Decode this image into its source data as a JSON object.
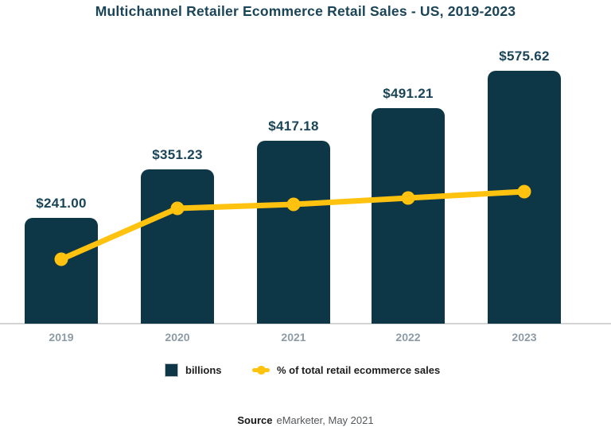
{
  "title": "Multichannel Retailer Ecommerce Retail Sales - US, 2019-2023",
  "chart_data": {
    "type": "combo",
    "title": "Multichannel Retailer Ecommerce Retail Sales - US, 2019-2023",
    "categories": [
      "2019",
      "2020",
      "2021",
      "2022",
      "2023"
    ],
    "series": [
      {
        "name": "billions",
        "type": "bar",
        "values": [
          241.0,
          351.23,
          417.18,
          491.21,
          575.62
        ],
        "labels": [
          "$241.00",
          "$351.23",
          "$417.18",
          "$491.21",
          "$575.62"
        ],
        "color": "#0d3746"
      },
      {
        "name": "% of total retail ecommerce sales",
        "type": "line",
        "values_est_on_bar_axis": [
          146.6,
          262.5,
          271.5,
          286.0,
          300.5
        ],
        "data_labels_shown": false,
        "color": "#ffc20e"
      }
    ],
    "xlabel": "",
    "ylabel": "",
    "ylim": [
      0,
      630
    ],
    "grid": false,
    "axis_ticks_shown": false,
    "legend_position": "bottom"
  },
  "legend": {
    "items": [
      {
        "label": "billions",
        "marker": "square",
        "color": "#0d3746"
      },
      {
        "label": "% of total retail ecommerce sales",
        "marker": "line-dot",
        "color": "#ffc20e"
      }
    ]
  },
  "source": {
    "prefix": "Source",
    "text": "eMarketer, May 2021"
  },
  "colors": {
    "bar": "#0d3746",
    "line": "#ffc20e",
    "title_text": "#1a4458",
    "axis_line": "#d2d4d5",
    "year_label": "#8d9ba6",
    "legend_text": "#1d1d1f",
    "source_text": "#54585b"
  }
}
